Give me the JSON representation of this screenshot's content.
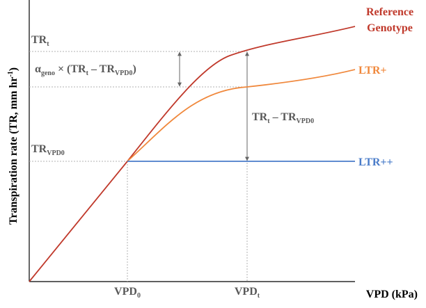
{
  "labels": {
    "reference": [
      "Reference",
      "Genotype"
    ],
    "ltr_plus": "LTR+",
    "ltr_plus_plus": "LTR++",
    "y_axis": {
      "text": "Transpiration rate (TR, mm hr",
      "sup": "-1",
      "close": ")"
    },
    "x_axis": "VPD (kPa)",
    "tr_t": {
      "main": "TR",
      "sub": "t"
    },
    "tr_vpd0": {
      "main": "TR",
      "sub": "VPD0"
    },
    "vpd_0": {
      "main": "VPD",
      "sub": "0"
    },
    "vpd_t": {
      "main": "VPD",
      "sub": "t"
    },
    "alpha_term": {
      "alpha": "α",
      "alpha_sub": "geno",
      "times": " × (TR",
      "t_sub": "t",
      "minus": " – TR",
      "vpd0_sub": "VPD0",
      "close": ")"
    },
    "difference": {
      "tr": "TR",
      "t_sub": "t",
      "minus": " – TR",
      "vpd0_sub": "VPD0"
    }
  }
}
